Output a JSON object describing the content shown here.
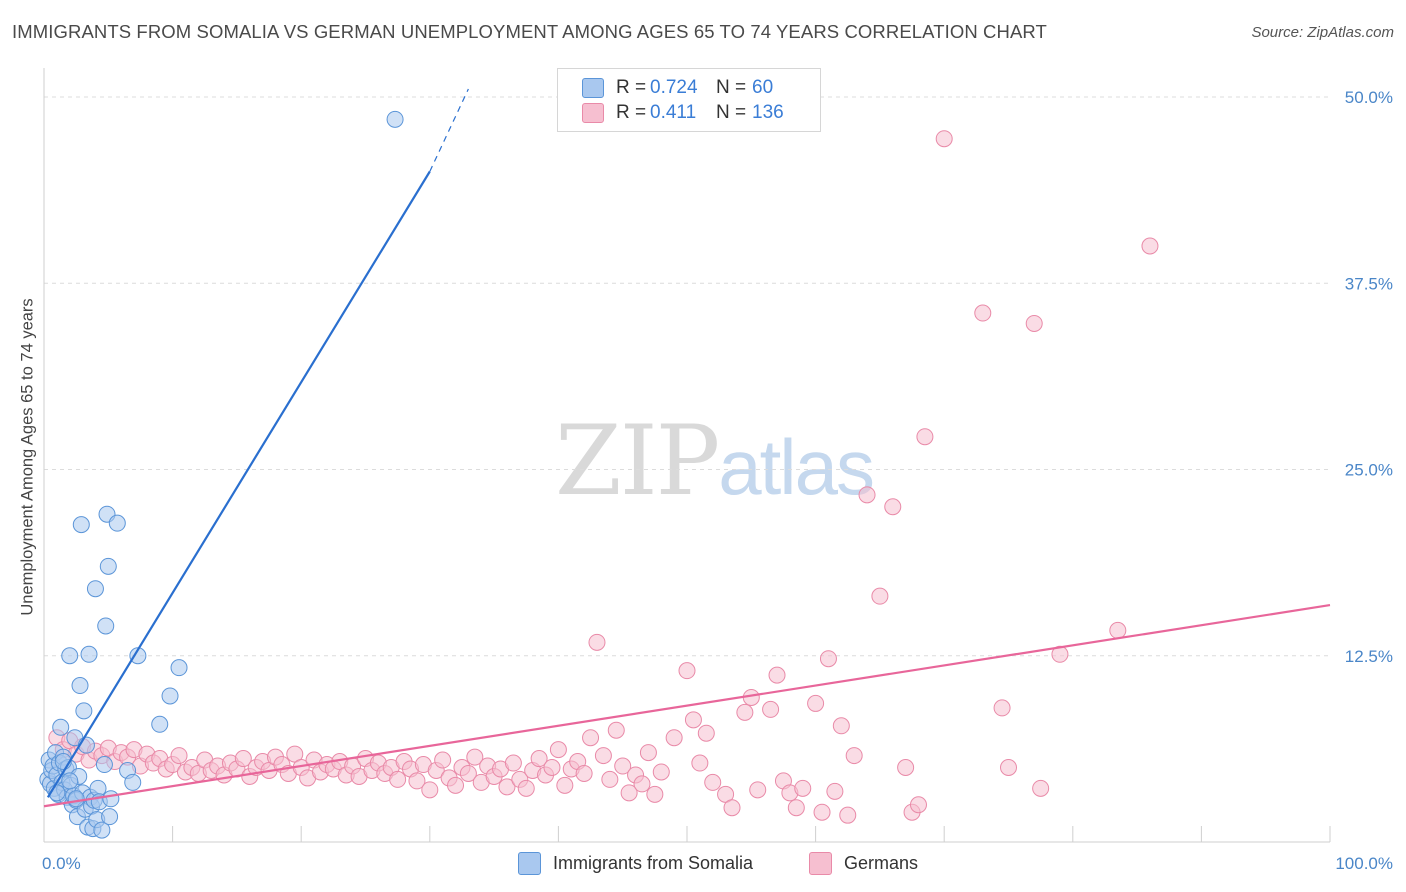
{
  "header": {
    "title": "IMMIGRANTS FROM SOMALIA VS GERMAN UNEMPLOYMENT AMONG AGES 65 TO 74 YEARS CORRELATION CHART",
    "source": "Source: ZipAtlas.com"
  },
  "watermark": {
    "zip": "ZIP",
    "atlas": "atlas"
  },
  "legend": {
    "somalia": {
      "r_label": "R =",
      "r_value": "0.724",
      "n_label": "N =",
      "n_value": "60"
    },
    "germans": {
      "r_label": "R =",
      "r_value": "0.411",
      "n_label": "N =",
      "n_value": "136"
    }
  },
  "bottom_legend": {
    "somalia": "Immigrants from Somalia",
    "germans": "Germans"
  },
  "colors": {
    "somalia_fill": "#a9c8ef",
    "somalia_stroke": "#5b95d8",
    "somalia_line": "#2a6fcf",
    "germans_fill": "#f6bfd0",
    "germans_stroke": "#e98aa8",
    "germans_line": "#e8669a",
    "grid": "#dcdcdc",
    "tick_text": "#4a86c8"
  },
  "chart_data": {
    "type": "scatter",
    "title": "IMMIGRANTS FROM SOMALIA VS GERMAN UNEMPLOYMENT AMONG AGES 65 TO 74 YEARS CORRELATION CHART",
    "xlabel": "",
    "ylabel": "Unemployment Among Ages 65 to 74 years",
    "xlim": [
      0,
      100
    ],
    "ylim": [
      0,
      52
    ],
    "x_tick_labels": [
      {
        "value": 0,
        "label": "0.0%"
      },
      {
        "value": 100,
        "label": "100.0%"
      }
    ],
    "y_tick_labels": [
      {
        "value": 12.5,
        "label": "12.5%"
      },
      {
        "value": 25,
        "label": "25.0%"
      },
      {
        "value": 37.5,
        "label": "37.5%"
      },
      {
        "value": 50,
        "label": "50.0%"
      }
    ],
    "grid": true,
    "series": [
      {
        "name": "Immigrants from Somalia",
        "color": "#5b95d8",
        "trendline": {
          "x": [
            0.3,
            30
          ],
          "y": [
            3.0,
            45
          ],
          "dashed_to": {
            "x": 33,
            "y": 50
          }
        },
        "points": [
          [
            0.3,
            4.2
          ],
          [
            0.4,
            5.5
          ],
          [
            0.5,
            3.9
          ],
          [
            0.6,
            4.8
          ],
          [
            0.7,
            5.1
          ],
          [
            0.8,
            3.6
          ],
          [
            0.9,
            6.0
          ],
          [
            1.0,
            4.5
          ],
          [
            1.1,
            3.2
          ],
          [
            1.2,
            5.3
          ],
          [
            1.3,
            7.7
          ],
          [
            1.4,
            4.0
          ],
          [
            1.5,
            5.7
          ],
          [
            1.6,
            3.5
          ],
          [
            1.7,
            4.9
          ],
          [
            1.8,
            3.0
          ],
          [
            1.9,
            5.0
          ],
          [
            2.0,
            12.5
          ],
          [
            2.1,
            3.8
          ],
          [
            2.2,
            2.5
          ],
          [
            2.3,
            3.1
          ],
          [
            2.4,
            7.0
          ],
          [
            2.5,
            2.8
          ],
          [
            2.6,
            1.7
          ],
          [
            2.7,
            4.4
          ],
          [
            2.8,
            10.5
          ],
          [
            2.9,
            21.3
          ],
          [
            3.0,
            3.3
          ],
          [
            3.1,
            8.8
          ],
          [
            3.2,
            2.2
          ],
          [
            3.3,
            6.5
          ],
          [
            3.4,
            1.0
          ],
          [
            3.5,
            12.6
          ],
          [
            3.6,
            3.0
          ],
          [
            3.7,
            2.4
          ],
          [
            3.8,
            0.9
          ],
          [
            3.9,
            2.8
          ],
          [
            4.0,
            17.0
          ],
          [
            4.1,
            1.5
          ],
          [
            4.2,
            3.6
          ],
          [
            4.3,
            2.7
          ],
          [
            4.5,
            0.8
          ],
          [
            4.7,
            5.2
          ],
          [
            4.8,
            14.5
          ],
          [
            4.9,
            22.0
          ],
          [
            5.0,
            18.5
          ],
          [
            5.1,
            1.7
          ],
          [
            5.2,
            2.9
          ],
          [
            5.7,
            21.4
          ],
          [
            6.5,
            4.8
          ],
          [
            6.9,
            4.0
          ],
          [
            7.3,
            12.5
          ],
          [
            9.0,
            7.9
          ],
          [
            9.8,
            9.8
          ],
          [
            10.5,
            11.7
          ],
          [
            1.0,
            3.3
          ],
          [
            1.5,
            5.4
          ],
          [
            2.0,
            4.1
          ],
          [
            2.5,
            2.9
          ],
          [
            27.3,
            48.5
          ]
        ]
      },
      {
        "name": "Germans",
        "color": "#e98aa8",
        "trendline": {
          "x": [
            0,
            100
          ],
          "y": [
            2.4,
            15.9
          ]
        },
        "points": [
          [
            1.0,
            7.0
          ],
          [
            1.5,
            6.2
          ],
          [
            2.0,
            6.8
          ],
          [
            2.5,
            5.9
          ],
          [
            3.0,
            6.4
          ],
          [
            3.5,
            5.5
          ],
          [
            4.0,
            6.1
          ],
          [
            4.5,
            5.8
          ],
          [
            5.0,
            6.3
          ],
          [
            5.5,
            5.4
          ],
          [
            6.0,
            6.0
          ],
          [
            6.5,
            5.7
          ],
          [
            7.0,
            6.2
          ],
          [
            7.5,
            5.1
          ],
          [
            8.0,
            5.9
          ],
          [
            8.5,
            5.3
          ],
          [
            9.0,
            5.6
          ],
          [
            9.5,
            4.9
          ],
          [
            10.0,
            5.2
          ],
          [
            10.5,
            5.8
          ],
          [
            11.0,
            4.7
          ],
          [
            11.5,
            5.0
          ],
          [
            12.0,
            4.6
          ],
          [
            12.5,
            5.5
          ],
          [
            13.0,
            4.8
          ],
          [
            13.5,
            5.1
          ],
          [
            14.0,
            4.5
          ],
          [
            14.5,
            5.3
          ],
          [
            15.0,
            4.9
          ],
          [
            15.5,
            5.6
          ],
          [
            16.0,
            4.4
          ],
          [
            16.5,
            5.0
          ],
          [
            17.0,
            5.4
          ],
          [
            17.5,
            4.8
          ],
          [
            18.0,
            5.7
          ],
          [
            18.5,
            5.2
          ],
          [
            19.0,
            4.6
          ],
          [
            19.5,
            5.9
          ],
          [
            20.0,
            5.0
          ],
          [
            20.5,
            4.3
          ],
          [
            21.0,
            5.5
          ],
          [
            21.5,
            4.7
          ],
          [
            22.0,
            5.2
          ],
          [
            22.5,
            4.9
          ],
          [
            23.0,
            5.4
          ],
          [
            23.5,
            4.5
          ],
          [
            24.0,
            5.1
          ],
          [
            24.5,
            4.4
          ],
          [
            25.0,
            5.6
          ],
          [
            25.5,
            4.8
          ],
          [
            26.0,
            5.3
          ],
          [
            26.5,
            4.6
          ],
          [
            27.0,
            5.0
          ],
          [
            27.5,
            4.2
          ],
          [
            28.0,
            5.4
          ],
          [
            28.5,
            4.9
          ],
          [
            29.0,
            4.1
          ],
          [
            29.5,
            5.2
          ],
          [
            30.0,
            3.5
          ],
          [
            30.5,
            4.8
          ],
          [
            31.0,
            5.5
          ],
          [
            31.5,
            4.3
          ],
          [
            32.0,
            3.8
          ],
          [
            32.5,
            5.0
          ],
          [
            33.0,
            4.6
          ],
          [
            33.5,
            5.7
          ],
          [
            34.0,
            4.0
          ],
          [
            34.5,
            5.1
          ],
          [
            35.0,
            4.4
          ],
          [
            35.5,
            4.9
          ],
          [
            36.0,
            3.7
          ],
          [
            36.5,
            5.3
          ],
          [
            37.0,
            4.2
          ],
          [
            37.5,
            3.6
          ],
          [
            38.0,
            4.8
          ],
          [
            38.5,
            5.6
          ],
          [
            39.0,
            4.5
          ],
          [
            39.5,
            5.0
          ],
          [
            40.0,
            6.2
          ],
          [
            40.5,
            3.8
          ],
          [
            41.0,
            4.9
          ],
          [
            41.5,
            5.4
          ],
          [
            42.0,
            4.6
          ],
          [
            42.5,
            7.0
          ],
          [
            43.0,
            13.4
          ],
          [
            43.5,
            5.8
          ],
          [
            44.0,
            4.2
          ],
          [
            44.5,
            7.5
          ],
          [
            45.0,
            5.1
          ],
          [
            45.5,
            3.3
          ],
          [
            46.0,
            4.5
          ],
          [
            46.5,
            3.9
          ],
          [
            47.0,
            6.0
          ],
          [
            47.5,
            3.2
          ],
          [
            48.0,
            4.7
          ],
          [
            49.0,
            7.0
          ],
          [
            50.0,
            11.5
          ],
          [
            50.5,
            8.2
          ],
          [
            51.0,
            5.3
          ],
          [
            51.5,
            7.3
          ],
          [
            52.0,
            4.0
          ],
          [
            53.0,
            3.2
          ],
          [
            53.5,
            2.3
          ],
          [
            54.5,
            8.7
          ],
          [
            55.0,
            9.7
          ],
          [
            55.5,
            3.5
          ],
          [
            56.5,
            8.9
          ],
          [
            57.0,
            11.2
          ],
          [
            57.5,
            4.1
          ],
          [
            58.0,
            3.3
          ],
          [
            58.5,
            2.3
          ],
          [
            59.0,
            3.6
          ],
          [
            60.0,
            9.3
          ],
          [
            60.5,
            2.0
          ],
          [
            61.0,
            12.3
          ],
          [
            61.5,
            3.4
          ],
          [
            62.0,
            7.8
          ],
          [
            62.5,
            1.8
          ],
          [
            63.0,
            5.8
          ],
          [
            64.0,
            23.3
          ],
          [
            65.0,
            16.5
          ],
          [
            66.0,
            22.5
          ],
          [
            67.0,
            5.0
          ],
          [
            67.5,
            2.0
          ],
          [
            68.0,
            2.5
          ],
          [
            68.5,
            27.2
          ],
          [
            70.0,
            47.2
          ],
          [
            73.0,
            35.5
          ],
          [
            74.5,
            9.0
          ],
          [
            75.0,
            5.0
          ],
          [
            77.0,
            34.8
          ],
          [
            77.5,
            3.6
          ],
          [
            79.0,
            12.6
          ],
          [
            83.5,
            14.2
          ],
          [
            86.0,
            40.0
          ]
        ]
      }
    ]
  }
}
